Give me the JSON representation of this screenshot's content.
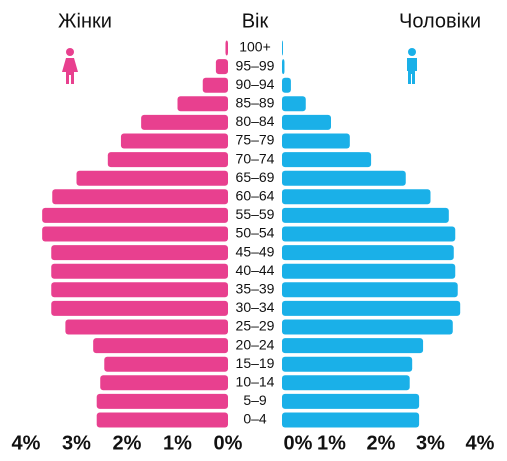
{
  "chart_data": {
    "type": "pyramid",
    "y_label": "Вік",
    "categories": [
      "100+",
      "95–99",
      "90–94",
      "85–89",
      "80–84",
      "75–79",
      "70–74",
      "65–69",
      "60–64",
      "55–59",
      "50–54",
      "45–49",
      "40–44",
      "35–39",
      "30–34",
      "25–29",
      "20–24",
      "15–19",
      "10–14",
      "5–9",
      "0–4"
    ],
    "series": [
      {
        "name": "Жінки",
        "color": "#e8408f",
        "values": [
          0.05,
          0.24,
          0.5,
          1.0,
          1.72,
          2.12,
          2.38,
          3.0,
          3.48,
          3.68,
          3.68,
          3.5,
          3.5,
          3.5,
          3.5,
          3.22,
          2.67,
          2.45,
          2.53,
          2.6,
          2.6
        ]
      },
      {
        "name": "Чоловіки",
        "color": "#1ab0e8",
        "values": [
          0.02,
          0.05,
          0.18,
          0.48,
          0.99,
          1.37,
          1.8,
          2.5,
          3.0,
          3.37,
          3.5,
          3.47,
          3.5,
          3.55,
          3.6,
          3.45,
          2.85,
          2.63,
          2.58,
          2.77,
          2.77
        ]
      }
    ],
    "xlim": [
      0,
      4
    ],
    "xticks": [
      {
        "value": 0,
        "label": "0%"
      },
      {
        "value": 1,
        "label": "1%"
      },
      {
        "value": 2,
        "label": "2%"
      },
      {
        "value": 3,
        "label": "3%"
      },
      {
        "value": 4,
        "label": "4%"
      }
    ]
  }
}
